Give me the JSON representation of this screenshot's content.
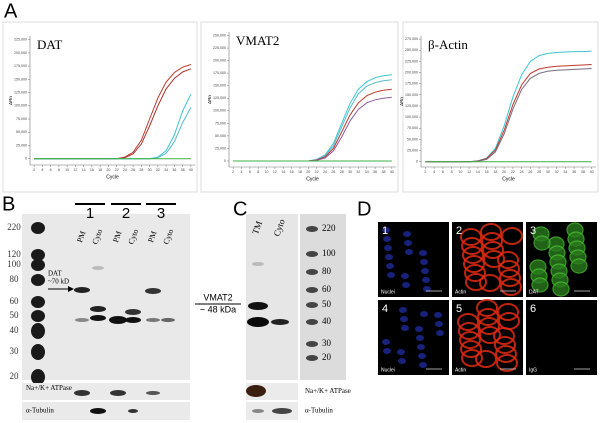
{
  "chart_data": [
    {
      "type": "line",
      "title": "DAT",
      "ylabel": "ΔRn",
      "xlabel": "Cycle",
      "x": [
        2,
        4,
        6,
        8,
        10,
        12,
        14,
        16,
        18,
        20,
        22,
        24,
        26,
        28,
        30,
        32,
        34,
        36,
        38,
        40
      ],
      "xlim": [
        1,
        41
      ],
      "xticks": [
        2,
        4,
        6,
        8,
        10,
        12,
        14,
        16,
        18,
        20,
        22,
        24,
        26,
        28,
        30,
        32,
        34,
        36,
        38,
        40
      ],
      "ylim": [
        -12000,
        232000
      ],
      "yticks": [
        0,
        {
          "value": 25000,
          "label": "25,000"
        },
        {
          "value": 50000,
          "label": "50,000"
        },
        {
          "value": 75000,
          "label": "75,000"
        },
        {
          "value": 100000,
          "label": "100,000"
        },
        {
          "value": 125000,
          "label": "125,000"
        },
        {
          "value": 150000,
          "label": "150,000"
        },
        {
          "value": 175000,
          "label": "175,000"
        },
        {
          "value": 200000,
          "label": "200,000"
        },
        {
          "value": 225000,
          "label": "225,000"
        }
      ],
      "series": [
        {
          "color": "#c0392b",
          "values": [
            0,
            0,
            0,
            0,
            0,
            0,
            0,
            0,
            0,
            0,
            0,
            3000,
            12000,
            35000,
            75000,
            115000,
            145000,
            163000,
            173000,
            178000
          ]
        },
        {
          "color": "#a8322a",
          "values": [
            0,
            0,
            0,
            0,
            0,
            0,
            0,
            0,
            0,
            0,
            0,
            2000,
            9000,
            28000,
            62000,
            100000,
            132000,
            152000,
            164000,
            170000
          ]
        },
        {
          "color": "#3cc6d0",
          "values": [
            0,
            0,
            0,
            0,
            0,
            0,
            0,
            0,
            0,
            0,
            0,
            0,
            0,
            0,
            0,
            3000,
            15000,
            45000,
            90000,
            122000
          ]
        },
        {
          "color": "#5ab8c8",
          "values": [
            0,
            0,
            0,
            0,
            0,
            0,
            0,
            0,
            0,
            0,
            0,
            0,
            0,
            0,
            0,
            2000,
            10000,
            32000,
            68000,
            97000
          ]
        },
        {
          "color": "#3cb043",
          "values": [
            0,
            0,
            0,
            0,
            0,
            0,
            0,
            0,
            0,
            0,
            0,
            0,
            0,
            0,
            0,
            0,
            0,
            0,
            0,
            0
          ]
        }
      ]
    },
    {
      "type": "line",
      "title": "VMAT2",
      "ylabel": "ΔRn",
      "xlabel": "Cycle",
      "x": [
        2,
        4,
        6,
        8,
        10,
        12,
        14,
        16,
        18,
        20,
        22,
        24,
        26,
        28,
        30,
        32,
        34,
        36,
        38,
        40
      ],
      "xlim": [
        1,
        41
      ],
      "xticks": [
        2,
        4,
        6,
        8,
        10,
        12,
        14,
        16,
        18,
        20,
        22,
        24,
        26,
        28,
        30,
        32,
        34,
        36,
        38,
        40
      ],
      "ylim": [
        -12000,
        257000
      ],
      "yticks": [
        0,
        {
          "value": 25000,
          "label": "25,000"
        },
        {
          "value": 50000,
          "label": "50,000"
        },
        {
          "value": 75000,
          "label": "75,000"
        },
        {
          "value": 100000,
          "label": "100,000"
        },
        {
          "value": 125000,
          "label": "125,000"
        },
        {
          "value": 150000,
          "label": "150,000"
        },
        {
          "value": 175000,
          "label": "175,000"
        },
        {
          "value": 200000,
          "label": "200,000"
        },
        {
          "value": 225000,
          "label": "225,000"
        },
        {
          "value": 250000,
          "label": "250,000"
        }
      ],
      "series": [
        {
          "color": "#3cc6d0",
          "values": [
            0,
            0,
            0,
            0,
            0,
            0,
            0,
            0,
            0,
            0,
            3000,
            12000,
            35000,
            75000,
            115000,
            143000,
            158000,
            166000,
            170000,
            172000
          ]
        },
        {
          "color": "#5ab8c8",
          "values": [
            0,
            0,
            0,
            0,
            0,
            0,
            0,
            0,
            0,
            0,
            2500,
            10000,
            30000,
            68000,
            106000,
            134000,
            149000,
            156000,
            160000,
            162000
          ]
        },
        {
          "color": "#c0392b",
          "values": [
            0,
            0,
            0,
            0,
            0,
            0,
            0,
            0,
            0,
            0,
            2000,
            8000,
            25000,
            58000,
            92000,
            116000,
            130000,
            137000,
            141000,
            143000
          ]
        },
        {
          "color": "#8e5a9a",
          "values": [
            0,
            0,
            0,
            0,
            0,
            0,
            0,
            0,
            0,
            0,
            1500,
            6000,
            20000,
            48000,
            80000,
            103000,
            116000,
            122000,
            125000,
            127000
          ]
        },
        {
          "color": "#3cb043",
          "values": [
            0,
            0,
            0,
            0,
            0,
            0,
            0,
            0,
            0,
            0,
            0,
            0,
            0,
            0,
            0,
            0,
            0,
            0,
            0,
            0
          ]
        }
      ]
    },
    {
      "type": "line",
      "title": "β-Actin",
      "ylabel": "ΔRn",
      "xlabel": "Cycle",
      "x": [
        2,
        4,
        6,
        8,
        10,
        12,
        14,
        16,
        18,
        20,
        22,
        24,
        26,
        28,
        30,
        32,
        34,
        36,
        38,
        40
      ],
      "xlim": [
        1,
        41
      ],
      "xticks": [
        2,
        4,
        6,
        8,
        10,
        12,
        14,
        16,
        18,
        20,
        22,
        24,
        26,
        28,
        30,
        32,
        34,
        36,
        38,
        40
      ],
      "ylim": [
        -12000,
        282000
      ],
      "yticks": [
        0,
        {
          "value": 25000,
          "label": "25,000"
        },
        {
          "value": 50000,
          "label": "50,000"
        },
        {
          "value": 75000,
          "label": "75,000"
        },
        {
          "value": 100000,
          "label": "100,000"
        },
        {
          "value": 125000,
          "label": "125,000"
        },
        {
          "value": 150000,
          "label": "150,000"
        },
        {
          "value": 175000,
          "label": "175,000"
        },
        {
          "value": 200000,
          "label": "200,000"
        },
        {
          "value": 225000,
          "label": "225,000"
        },
        {
          "value": 250000,
          "label": "250,000"
        },
        {
          "value": 275000,
          "label": "275,000"
        }
      ],
      "series": [
        {
          "color": "#3cc6d0",
          "values": [
            0,
            0,
            0,
            0,
            0,
            0,
            2000,
            8000,
            30000,
            80000,
            145000,
            195000,
            225000,
            238000,
            243000,
            245000,
            246000,
            247000,
            247000,
            248000
          ]
        },
        {
          "color": "#c0392b",
          "values": [
            0,
            0,
            0,
            0,
            0,
            0,
            1500,
            7000,
            26000,
            70000,
            128000,
            172000,
            198000,
            208000,
            212000,
            214000,
            215000,
            216000,
            217000,
            218000
          ]
        },
        {
          "color": "#7a6a80",
          "values": [
            0,
            0,
            0,
            0,
            0,
            0,
            1000,
            5000,
            22000,
            62000,
            118000,
            162000,
            187000,
            198000,
            203000,
            205000,
            206000,
            207000,
            208000,
            209000
          ]
        },
        {
          "color": "#3cb043",
          "values": [
            0,
            0,
            0,
            0,
            0,
            0,
            0,
            0,
            0,
            0,
            0,
            0,
            0,
            0,
            0,
            0,
            0,
            0,
            0,
            0
          ]
        }
      ]
    }
  ],
  "panels": {
    "A": {
      "label": "A"
    },
    "B": {
      "label": "B",
      "groups": [
        "1",
        "2",
        "3"
      ],
      "lanes": [
        "PM",
        "Cyto",
        "PM",
        "Cyto",
        "PM",
        "Cyto"
      ],
      "markers": [
        220,
        120,
        100,
        80,
        60,
        50,
        40,
        30,
        20
      ],
      "target": "DAT",
      "target_size": "~70 kD",
      "strips": [
        "Na+/K+ ATPase",
        "α-Tubulin"
      ]
    },
    "VMAT2": {
      "name": "VMAT2",
      "size": "~ 48 kDa"
    },
    "C": {
      "label": "C",
      "lanes": [
        "TM",
        "Cyto"
      ],
      "markers": [
        220,
        100,
        80,
        60,
        50,
        40,
        30,
        20
      ],
      "strips": [
        "Na+/K+ ATPase",
        "α-Tubulin"
      ]
    },
    "D": {
      "label": "D",
      "tiles": [
        {
          "number": 1,
          "name": "Nuclei"
        },
        {
          "number": 2,
          "name": "Actin"
        },
        {
          "number": 3,
          "name": "DAT"
        },
        {
          "number": 4,
          "name": "Nuclei"
        },
        {
          "number": 5,
          "name": "Actin"
        },
        {
          "number": 6,
          "name": "IgG"
        }
      ]
    }
  }
}
